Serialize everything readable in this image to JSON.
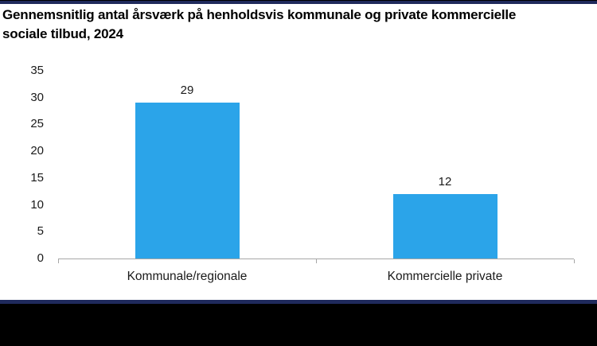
{
  "title_lines": [
    "Gennemsnitlig antal årsværk på henholdsvis kommunale og private kommercielle",
    "sociale tilbud, 2024"
  ],
  "chart_data": {
    "type": "bar",
    "title": "Gennemsnitlig antal årsværk på henholdsvis kommunale og private kommercielle sociale tilbud, 2024",
    "categories": [
      "Kommunale/regionale",
      "Kommercielle private"
    ],
    "values": [
      29,
      12
    ],
    "data_labels": [
      "29",
      "12"
    ],
    "xlabel": "",
    "ylabel": "",
    "ylim": [
      0,
      35
    ],
    "yticks": [
      0,
      5,
      10,
      15,
      20,
      25,
      30,
      35
    ],
    "grid": false,
    "legend": false,
    "colors": {
      "bar": "#2BA4E9",
      "axis": "#A6A6A6",
      "accent_navy": "#1F2A5C",
      "text": "#1a1a1a",
      "title_text": "#000000",
      "background": "#ffffff"
    }
  }
}
